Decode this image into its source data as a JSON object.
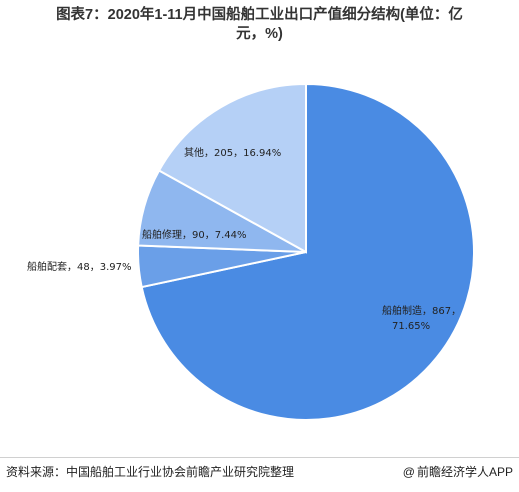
{
  "title_line1": "图表7：2020年1-11月中国船舶工业出口产值细分结构(单位：亿",
  "title_line2": "元，%)",
  "source": "资料来源：中国船舶工业行业协会前瞻产业研究院整理",
  "brand": "前瞻经济学人APP",
  "brand_icon": "at-icon",
  "colors": {
    "manufacturing": "#4a8be3",
    "supporting": "#6a9fe8",
    "repair": "#8fb7ef",
    "other": "#b5d0f6"
  },
  "chart_data": {
    "type": "pie",
    "title": "图表7：2020年1-11月中国船舶工业出口产值细分结构(单位：亿元，%)",
    "start_angle_deg": 0,
    "direction": "clockwise",
    "slices": [
      {
        "name": "船舶制造",
        "value": 867,
        "percent": "71.65%",
        "label_line1": "船舶制造，867，",
        "label_line2": "71.65%"
      },
      {
        "name": "船舶配套",
        "value": 48,
        "percent": "3.97%",
        "label_line1": "船舶配套，48，3.97%",
        "label_line2": ""
      },
      {
        "name": "船舶修理",
        "value": 90,
        "percent": "7.44%",
        "label_line1": "船舶修理，90，7.44%",
        "label_line2": ""
      },
      {
        "name": "其他",
        "value": 205,
        "percent": "16.94%",
        "label_line1": "其他，205，16.94%",
        "label_line2": ""
      }
    ]
  }
}
